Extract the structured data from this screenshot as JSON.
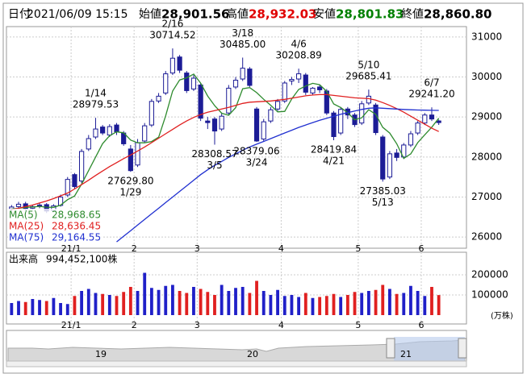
{
  "header": {
    "items": [
      {
        "label": "日付",
        "value": "2021/06/09 15:15",
        "color": "#000000"
      },
      {
        "label": "始値",
        "value": "28,901.56",
        "color": "#000000"
      },
      {
        "label": "高値",
        "value": "28,932.03",
        "color": "#e00000"
      },
      {
        "label": "安値",
        "value": "28,801.83",
        "color": "#008000"
      },
      {
        "label": "終値",
        "value": "28,860.80",
        "color": "#000000"
      }
    ]
  },
  "chart_data": [
    {
      "type": "candlestick",
      "categories": [
        null,
        null,
        null,
        null,
        null,
        null,
        null,
        null,
        null,
        "21/1",
        null,
        null,
        null,
        null,
        null,
        null,
        null,
        null,
        "2",
        null,
        null,
        null,
        null,
        null,
        null,
        null,
        null,
        "3",
        null,
        null,
        null,
        null,
        null,
        null,
        null,
        null,
        null,
        null,
        null,
        "4",
        null,
        null,
        null,
        null,
        null,
        null,
        null,
        null,
        null,
        null,
        "5",
        null,
        null,
        null,
        null,
        null,
        null,
        null,
        null,
        "6",
        null,
        null
      ],
      "open": [
        26700,
        26760,
        26830,
        26720,
        26780,
        26810,
        26660,
        26790,
        27050,
        27560,
        27400,
        28200,
        28500,
        28750,
        28550,
        28800,
        28600,
        28200,
        27800,
        28400,
        28800,
        29400,
        29600,
        30100,
        30500,
        30100,
        29700,
        29800,
        28900,
        28950,
        28700,
        29100,
        29750,
        29950,
        30200,
        29200,
        28450,
        28900,
        29200,
        29400,
        29900,
        29950,
        30050,
        29600,
        29750,
        29650,
        29100,
        28600,
        29200,
        29050,
        28850,
        29350,
        29300,
        28500,
        27500,
        28100,
        28000,
        28300,
        28600,
        28850,
        29050,
        28901.56
      ],
      "high": [
        26800,
        26880,
        26880,
        26800,
        26860,
        26850,
        26820,
        27060,
        27500,
        27600,
        28200,
        28550,
        28979.53,
        28800,
        28820,
        28850,
        28650,
        28300,
        28450,
        28850,
        29450,
        29600,
        30150,
        30714.52,
        30550,
        30150,
        30050,
        29850,
        29000,
        29000,
        29100,
        29800,
        30000,
        30485.0,
        30250,
        29250,
        28950,
        29250,
        29450,
        29900,
        30000,
        30208.89,
        30100,
        29750,
        29800,
        29700,
        29150,
        29250,
        29250,
        29100,
        29400,
        29685.41,
        29350,
        28550,
        28150,
        28200,
        28350,
        28650,
        28900,
        29100,
        29241.2,
        28932.03
      ],
      "low": [
        26650,
        26700,
        26650,
        26680,
        26720,
        26600,
        26620,
        26760,
        27000,
        27200,
        27350,
        28150,
        28450,
        28550,
        28500,
        28550,
        28280,
        27629.8,
        27750,
        28350,
        28750,
        29350,
        29550,
        30050,
        30100,
        29600,
        29650,
        28900,
        28700,
        28308.57,
        28650,
        29050,
        29700,
        29900,
        29750,
        28379.06,
        28400,
        28850,
        29150,
        29350,
        29800,
        29850,
        29550,
        29550,
        29600,
        29050,
        28419.84,
        28550,
        28950,
        28750,
        28800,
        29300,
        28550,
        27385.03,
        27450,
        27900,
        27950,
        28250,
        28550,
        28800,
        28900,
        28801.83
      ],
      "close": [
        26750,
        26820,
        26700,
        26760,
        26800,
        26650,
        26780,
        27000,
        27440,
        27260,
        28140,
        28460,
        28700,
        28600,
        28760,
        28630,
        28330,
        27660,
        28360,
        28780,
        29390,
        29520,
        30080,
        30470,
        30170,
        29660,
        29970,
        28970,
        28860,
        28650,
        29020,
        29720,
        29920,
        30220,
        29790,
        28400,
        28880,
        29180,
        29390,
        29850,
        29940,
        30080,
        29620,
        29720,
        29680,
        29100,
        28510,
        29190,
        29050,
        28810,
        29330,
        29520,
        28610,
        27450,
        28080,
        27990,
        28300,
        28580,
        28850,
        29050,
        28950,
        28860.8
      ],
      "up_color": "#ffffff",
      "down_color": "#1c1c96",
      "series": [
        {
          "name": "MA(5)",
          "color": "#2e8b2e",
          "last_label": "28,968.65",
          "values": [
            26700,
            26720,
            26740,
            26750,
            26766,
            26746,
            26742,
            26798,
            26934,
            27026,
            27324,
            27660,
            28000,
            28332,
            28532,
            28630,
            28604,
            28424,
            28356,
            28356,
            28388,
            28496,
            29026,
            29648,
            29926,
            29980,
            30074,
            29848,
            29526,
            29284,
            29094,
            29044,
            29234,
            29706,
            29734,
            29610,
            29442,
            29294,
            29128,
            29140,
            29448,
            29688,
            29776,
            29842,
            29808,
            29640,
            29326,
            29238,
            29106,
            28932,
            28980,
            29182,
            29064,
            28744,
            28598,
            28330,
            27966,
            28080,
            28360,
            28554,
            28746,
            28968.65
          ]
        },
        {
          "name": "MA(25)",
          "color": "#e02020",
          "last_label": "28,636.45",
          "values": [
            26680,
            26720,
            26760,
            26800,
            26850,
            26900,
            26960,
            27030,
            27100,
            27200,
            27310,
            27420,
            27540,
            27650,
            27760,
            27860,
            27960,
            28050,
            28150,
            28250,
            28360,
            28470,
            28580,
            28690,
            28800,
            28900,
            28990,
            29060,
            29120,
            29160,
            29200,
            29240,
            29290,
            29340,
            29370,
            29380,
            29390,
            29400,
            29420,
            29440,
            29470,
            29500,
            29530,
            29550,
            29560,
            29560,
            29540,
            29520,
            29500,
            29480,
            29470,
            29460,
            29420,
            29360,
            29290,
            29210,
            29120,
            29020,
            28920,
            28820,
            28720,
            28636.45
          ]
        },
        {
          "name": "MA(75)",
          "color": "#2030d0",
          "last_label": "29,164.55",
          "values": [
            null,
            null,
            null,
            null,
            null,
            null,
            null,
            null,
            null,
            null,
            null,
            null,
            null,
            null,
            null,
            25880,
            26020,
            26160,
            26300,
            26440,
            26580,
            26720,
            26860,
            27000,
            27140,
            27280,
            27420,
            27560,
            27680,
            27790,
            27890,
            27990,
            28080,
            28170,
            28250,
            28320,
            28390,
            28460,
            28530,
            28600,
            28670,
            28740,
            28800,
            28860,
            28920,
            28970,
            29020,
            29070,
            29110,
            29150,
            29190,
            29220,
            29230,
            29220,
            29210,
            29200,
            29190,
            29180,
            29175,
            29170,
            29167,
            29164.55
          ]
        }
      ],
      "annotations": [
        {
          "date": "1/14",
          "value": 28979.53,
          "label": "28979.53"
        },
        {
          "date": "1/29",
          "value": 27629.8,
          "label": "27629.80"
        },
        {
          "date": "2/16",
          "value": 30714.52,
          "label": "30714.52"
        },
        {
          "date": "3/5",
          "value": 28308.57,
          "label": "28308.57"
        },
        {
          "date": "3/18",
          "value": 30485.0,
          "label": "30485.00"
        },
        {
          "date": "3/24",
          "value": 28379.06,
          "label": "28379.06"
        },
        {
          "date": "4/6",
          "value": 30208.89,
          "label": "30208.89"
        },
        {
          "date": "4/21",
          "value": 28419.84,
          "label": "28419.84"
        },
        {
          "date": "5/10",
          "value": 29685.41,
          "label": "29685.41"
        },
        {
          "date": "5/13",
          "value": 27385.03,
          "label": "27385.03"
        },
        {
          "date": "6/7",
          "value": 29241.2,
          "label": "29241.20"
        }
      ],
      "ylim": [
        25720,
        31260
      ],
      "yticks": [
        26000,
        27000,
        28000,
        29000,
        30000,
        31000
      ],
      "grid": true
    },
    {
      "type": "bar",
      "title": "出来高",
      "title_value": "994,452,100株",
      "unit_label": "(万株)",
      "categories": [
        null,
        null,
        null,
        null,
        null,
        null,
        null,
        null,
        null,
        "21/1",
        null,
        null,
        null,
        null,
        null,
        null,
        null,
        null,
        "2",
        null,
        null,
        null,
        null,
        null,
        null,
        null,
        null,
        "3",
        null,
        null,
        null,
        null,
        null,
        null,
        null,
        null,
        null,
        null,
        null,
        "4",
        null,
        null,
        null,
        null,
        null,
        null,
        null,
        null,
        null,
        null,
        "5",
        null,
        null,
        null,
        null,
        null,
        null,
        null,
        null,
        "6",
        null,
        null
      ],
      "values": [
        60000,
        70000,
        65000,
        80000,
        75000,
        70000,
        85000,
        60000,
        55000,
        95000,
        120000,
        130000,
        110000,
        105000,
        100000,
        95000,
        115000,
        140000,
        120000,
        210000,
        135000,
        125000,
        145000,
        150000,
        120000,
        110000,
        140000,
        130000,
        115000,
        100000,
        150000,
        120000,
        135000,
        140000,
        110000,
        170000,
        120000,
        100000,
        125000,
        95000,
        100000,
        90000,
        110000,
        85000,
        90000,
        95000,
        105000,
        90000,
        100000,
        115000,
        110000,
        120000,
        125000,
        150000,
        130000,
        105000,
        110000,
        145000,
        120000,
        95000,
        140000,
        99445
      ],
      "up_color": "#2020c8",
      "down_color": "#e02020",
      "ylim": [
        0,
        280000
      ],
      "yticks": [
        100000,
        200000
      ],
      "grid": true
    }
  ],
  "navigator": {
    "labels": [
      "19",
      "20",
      "21"
    ]
  }
}
